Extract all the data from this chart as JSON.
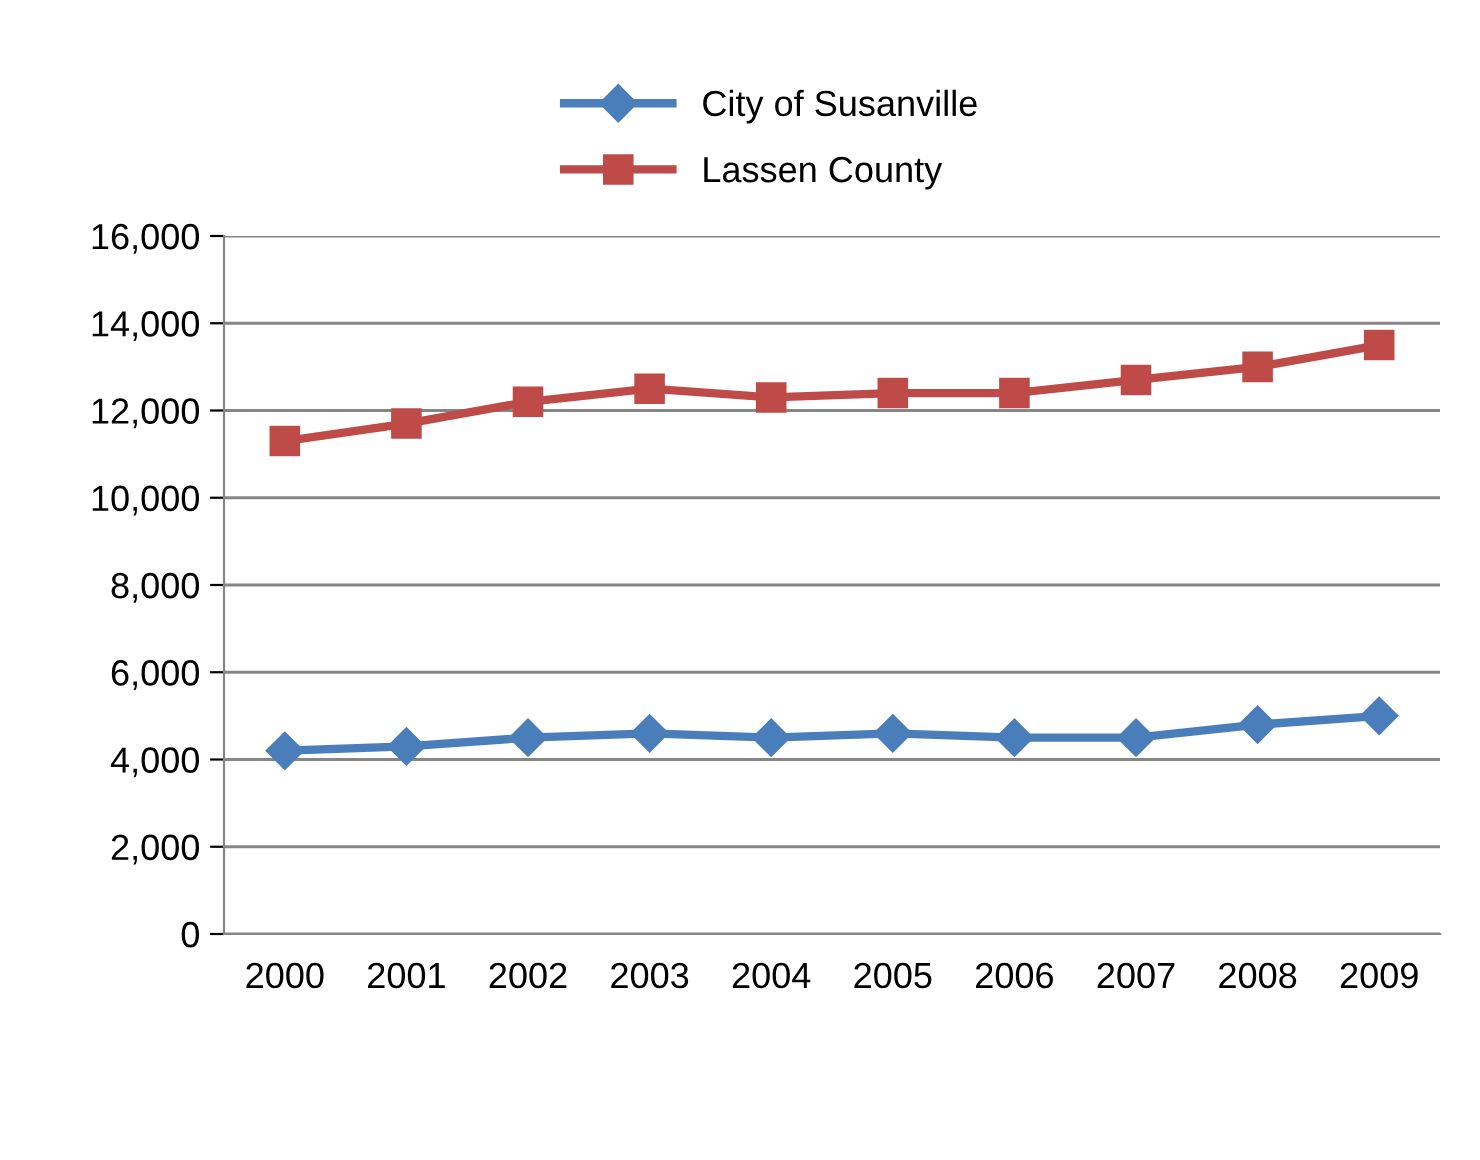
{
  "chart_data": {
    "type": "line",
    "categories": [
      "2000",
      "2001",
      "2002",
      "2003",
      "2004",
      "2005",
      "2006",
      "2007",
      "2008",
      "2009"
    ],
    "series": [
      {
        "name": "City of Susanville",
        "color": "#4a7ebb",
        "marker": "diamond",
        "values": [
          4200,
          4300,
          4500,
          4600,
          4500,
          4600,
          4500,
          4500,
          4800,
          5000
        ]
      },
      {
        "name": "Lassen County",
        "color": "#be4b48",
        "marker": "square",
        "values": [
          11300,
          11700,
          12200,
          12500,
          12300,
          12400,
          12400,
          12700,
          13000,
          13500
        ]
      }
    ],
    "ylim": [
      0,
      16000
    ],
    "yticks": [
      {
        "value": 0,
        "label": "0"
      },
      {
        "value": 2000,
        "label": "2,000"
      },
      {
        "value": 4000,
        "label": "4,000"
      },
      {
        "value": 6000,
        "label": "6,000"
      },
      {
        "value": 8000,
        "label": "8,000"
      },
      {
        "value": 10000,
        "label": "10,000"
      },
      {
        "value": 12000,
        "label": "12,000"
      },
      {
        "value": 14000,
        "label": "14,000"
      },
      {
        "value": 16000,
        "label": "16,000"
      }
    ],
    "grid": "y",
    "legend": "top",
    "line_style": "solid"
  }
}
